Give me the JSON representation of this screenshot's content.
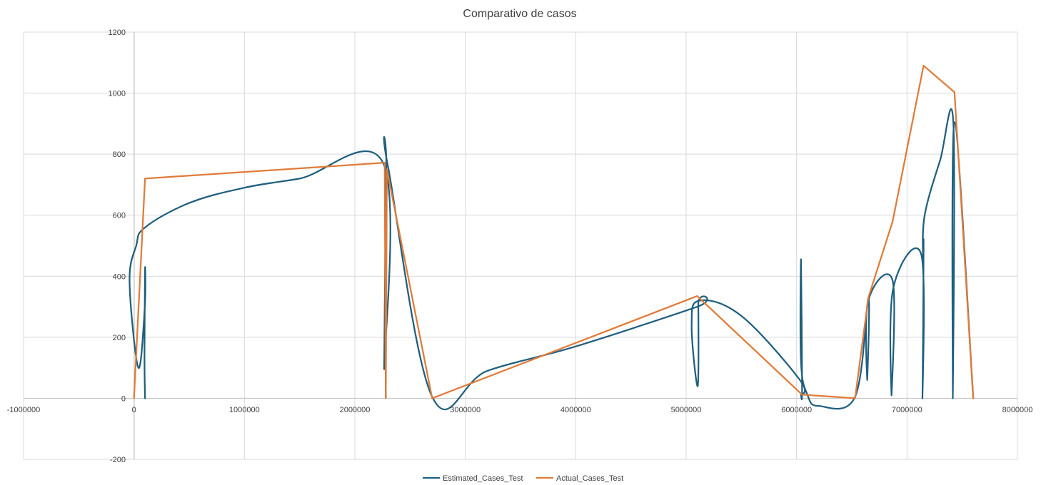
{
  "chart_data": {
    "type": "scatter",
    "title": "Comparativo de casos",
    "xlim": [
      -1000000,
      8000000
    ],
    "ylim": [
      -200,
      1200
    ],
    "x_ticks": [
      "-1000000",
      "0",
      "1000000",
      "2000000",
      "3000000",
      "4000000",
      "5000000",
      "6000000",
      "7000000",
      "8000000"
    ],
    "y_ticks": [
      "-200",
      "0",
      "200",
      "400",
      "600",
      "800",
      "1000",
      "1200"
    ],
    "x_tick_values": [
      -1000000,
      0,
      1000000,
      2000000,
      3000000,
      4000000,
      5000000,
      6000000,
      7000000,
      8000000
    ],
    "y_tick_values": [
      -200,
      0,
      200,
      400,
      600,
      800,
      1000,
      1200
    ],
    "grid": true,
    "legend_position": "bottom",
    "series": [
      {
        "name": "Estimated_Cases_Test",
        "color": "#1f5f7f",
        "smooth": true,
        "points": [
          [
            100000,
            0
          ],
          [
            95000,
            140
          ],
          [
            100000,
            425
          ],
          [
            98000,
            300
          ],
          [
            40000,
            100
          ],
          [
            -40000,
            380
          ],
          [
            20000,
            500
          ],
          [
            100000,
            560
          ],
          [
            500000,
            640
          ],
          [
            1000000,
            690
          ],
          [
            1500000,
            720
          ],
          [
            2260000,
            768
          ],
          [
            2265000,
            100
          ],
          [
            2275000,
            470
          ],
          [
            2280000,
            5
          ],
          [
            2285000,
            750
          ],
          [
            2300000,
            760
          ],
          [
            2700000,
            5
          ],
          [
            3200000,
            90
          ],
          [
            4000000,
            170
          ],
          [
            5100000,
            300
          ],
          [
            5110000,
            310
          ],
          [
            5105000,
            40
          ],
          [
            5050000,
            240
          ],
          [
            5120000,
            320
          ],
          [
            5500000,
            270
          ],
          [
            6030000,
            60
          ],
          [
            6040000,
            10
          ],
          [
            6050000,
            45
          ],
          [
            6040000,
            455
          ],
          [
            6040000,
            120
          ],
          [
            6100000,
            10
          ],
          [
            6200000,
            -25
          ],
          [
            6530000,
            5
          ],
          [
            6650000,
            330
          ],
          [
            6640000,
            60
          ],
          [
            6650000,
            320
          ],
          [
            6870000,
            385
          ],
          [
            6860000,
            10
          ],
          [
            6875000,
            360
          ],
          [
            7130000,
            470
          ],
          [
            7140000,
            0
          ],
          [
            7150000,
            495
          ],
          [
            7145000,
            460
          ],
          [
            7160000,
            600
          ],
          [
            7300000,
            780
          ],
          [
            7420000,
            900
          ],
          [
            7415000,
            0
          ],
          [
            7430000,
            905
          ],
          [
            7600000,
            0
          ]
        ]
      },
      {
        "name": "Actual_Cases_Test",
        "color": "#e07b39",
        "smooth": false,
        "points": [
          [
            0,
            0
          ],
          [
            100000,
            720
          ],
          [
            2270000,
            772
          ],
          [
            2280000,
            0
          ],
          [
            2290000,
            750
          ],
          [
            2700000,
            0
          ],
          [
            5100000,
            335
          ],
          [
            6050000,
            12
          ],
          [
            6530000,
            0
          ],
          [
            6650000,
            330
          ],
          [
            6870000,
            580
          ],
          [
            7150000,
            1090
          ],
          [
            7430000,
            1003
          ],
          [
            7600000,
            0
          ]
        ]
      }
    ]
  }
}
